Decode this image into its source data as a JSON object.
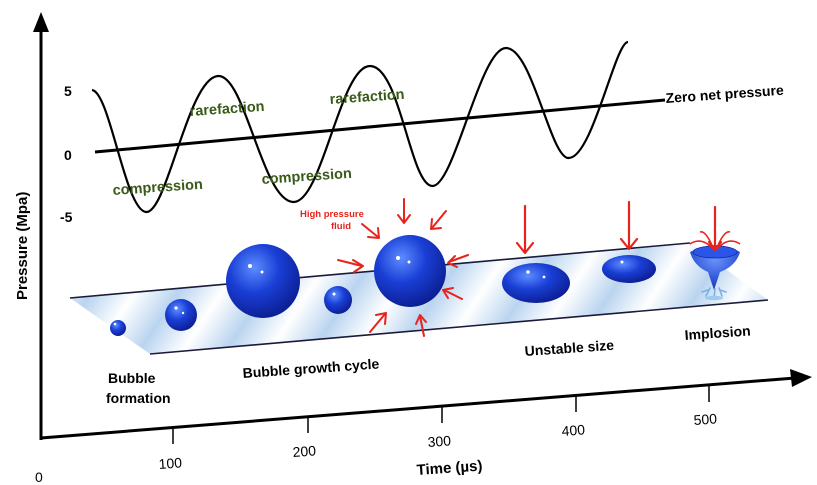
{
  "axes": {
    "y_title": "Pressure (Mpa)",
    "x_title": "Time (µs)",
    "y_ticks": [
      "5",
      "0",
      "-5"
    ],
    "x_ticks": [
      "0",
      "100",
      "200",
      "300",
      "400",
      "500"
    ]
  },
  "wave": {
    "reference_label": "Zero net pressure",
    "labels": [
      "rarefaction",
      "rarefaction",
      "compression",
      "compression"
    ]
  },
  "annotation": {
    "high_pressure_line1": "High pressure",
    "high_pressure_line2": "fluid"
  },
  "stages": {
    "formation_line1": "Bubble",
    "formation_line2": "formation",
    "growth": "Bubble growth cycle",
    "unstable": "Unstable size",
    "implosion": "Implosion"
  },
  "colors": {
    "bubble": "#1030c8",
    "arrow": "#e8231b",
    "label_green": "#3a5a1a",
    "band": "#bcd6f0"
  }
}
